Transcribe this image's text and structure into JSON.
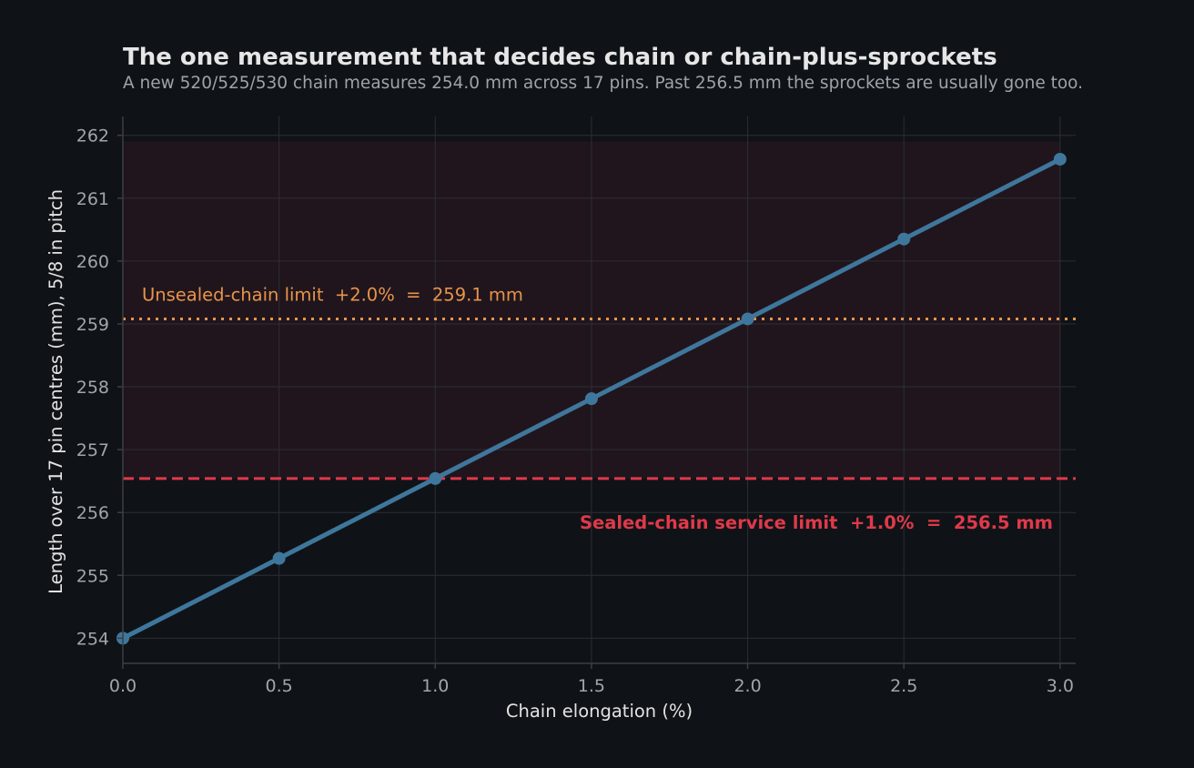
{
  "colors": {
    "background": "#0f1317",
    "series": "#3f779c",
    "sealed_limit": "#e0394a",
    "unsealed_limit": "#e8944a",
    "worn_zone": "#20151d",
    "grid": "#2b2f35",
    "axis": "#3a3f45"
  },
  "chart_data": {
    "type": "line",
    "title": "The one measurement that decides chain or chain-plus-sprockets",
    "subtitle": "A new 520/525/530 chain measures 254.0 mm across 17 pins. Past 256.5 mm the sprockets are usually gone too.",
    "xlabel": "Chain elongation (%)",
    "ylabel": "Length over 17 pin centres (mm), 5/8 in pitch",
    "xlim": [
      0,
      3.05
    ],
    "ylim": [
      253.6,
      262.3
    ],
    "x_ticks": [
      0.0,
      0.5,
      1.0,
      1.5,
      2.0,
      2.5,
      3.0
    ],
    "y_ticks": [
      254,
      255,
      256,
      257,
      258,
      259,
      260,
      261,
      262
    ],
    "grid": true,
    "series": [
      {
        "x": [
          0.0,
          0.5,
          1.0,
          1.5,
          2.0,
          2.5,
          3.0
        ],
        "y": [
          254.0,
          255.27,
          256.54,
          257.81,
          259.08,
          260.35,
          261.62
        ]
      }
    ],
    "shaded_band": {
      "y_from": 256.54,
      "y_to": 261.9
    },
    "reference_lines": [
      {
        "id": "sealed",
        "y": 256.54,
        "style": "dashed",
        "label": "Sealed-chain service limit  +1.0%  =  256.5 mm"
      },
      {
        "id": "unsealed",
        "y": 259.08,
        "style": "dotted",
        "label": "Unsealed-chain limit  +2.0%  =  259.1 mm"
      }
    ]
  }
}
